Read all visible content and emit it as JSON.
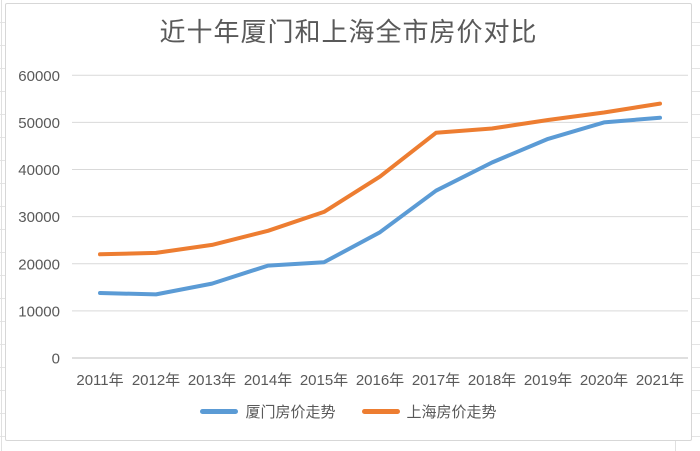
{
  "chart_data": {
    "type": "line",
    "title": "近十年厦门和上海全市房价对比",
    "categories": [
      "2011年",
      "2012年",
      "2013年",
      "2014年",
      "2015年",
      "2016年",
      "2017年",
      "2018年",
      "2019年",
      "2020年",
      "2021年"
    ],
    "series": [
      {
        "name": "厦门房价走势",
        "color": "#5B9BD5",
        "values": [
          13800,
          13500,
          15800,
          19600,
          20300,
          26700,
          35500,
          41500,
          46500,
          50000,
          51000
        ]
      },
      {
        "name": "上海房价走势",
        "color": "#ED7D31",
        "values": [
          22000,
          22300,
          24000,
          27000,
          31000,
          38500,
          47800,
          48700,
          50500,
          52100,
          54000
        ]
      }
    ],
    "xlabel": "",
    "ylabel": "",
    "ylim": [
      0,
      60000
    ],
    "ytick_step": 10000,
    "ytick_labels": [
      "0",
      "10000",
      "20000",
      "30000",
      "40000",
      "50000",
      "60000"
    ],
    "grid": "horizontal",
    "legend_position": "bottom"
  },
  "colors": {
    "text": "#595959",
    "gridline": "#D9D9D9",
    "axis_line": "#BFBFBF",
    "chart_border": "#D7D7D7"
  }
}
